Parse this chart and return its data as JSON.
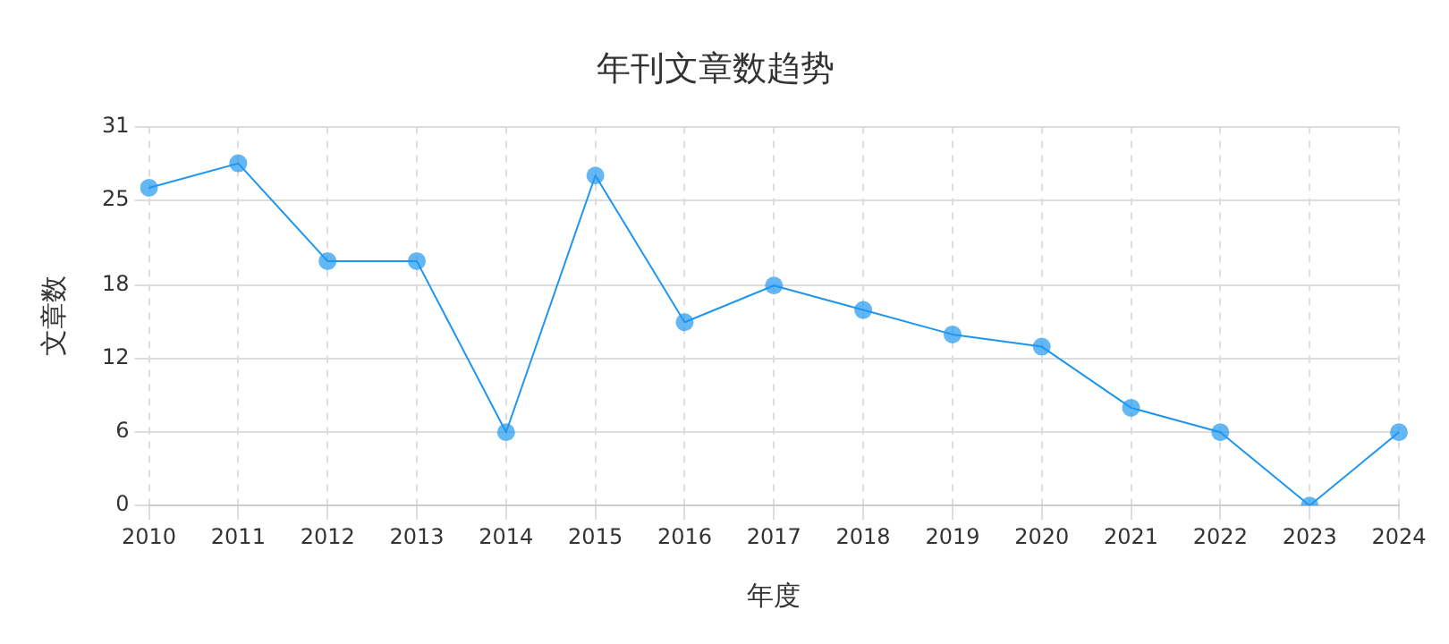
{
  "chart_data": {
    "type": "line",
    "title": "年刊文章数趋势",
    "xlabel": "年度",
    "ylabel": "文章数",
    "categories": [
      "2010",
      "2011",
      "2012",
      "2013",
      "2014",
      "2015",
      "2016",
      "2017",
      "2018",
      "2019",
      "2020",
      "2021",
      "2022",
      "2023",
      "2024"
    ],
    "series": [
      {
        "color": "#1e96f0",
        "values": [
          26,
          28,
          20,
          20,
          6,
          27,
          15,
          18,
          16,
          14,
          13,
          8,
          6,
          0,
          6
        ]
      }
    ],
    "ylim": [
      0,
      31
    ],
    "yticks": [
      0,
      6,
      12,
      18,
      25,
      31
    ],
    "grid": true,
    "legend": false,
    "marker": "circle",
    "line_style": "solid"
  }
}
